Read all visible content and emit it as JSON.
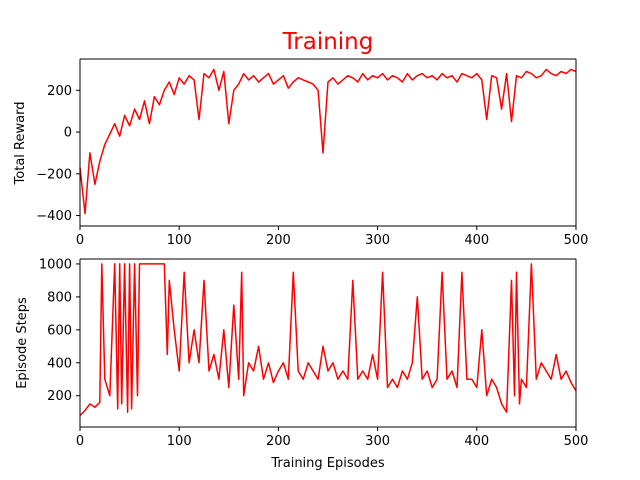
{
  "title": "Training",
  "title_color": "#ff0000",
  "line_color": "#ff0000",
  "chart_data": [
    {
      "type": "line",
      "title": "Training",
      "xlabel": "",
      "ylabel": "Total Reward",
      "xlim": [
        0,
        500
      ],
      "ylim": [
        -450,
        350
      ],
      "xticks": [
        0,
        100,
        200,
        300,
        400,
        500
      ],
      "yticks": [
        -400,
        -200,
        0,
        200
      ],
      "grid": false,
      "series": [
        {
          "x": [
            0,
            5,
            10,
            15,
            20,
            25,
            30,
            35,
            40,
            45,
            50,
            55,
            60,
            65,
            70,
            75,
            80,
            85,
            90,
            95,
            100,
            105,
            110,
            115,
            120,
            125,
            130,
            135,
            140,
            145,
            150,
            155,
            160,
            165,
            170,
            175,
            180,
            185,
            190,
            195,
            200,
            205,
            210,
            215,
            220,
            225,
            230,
            235,
            240,
            245,
            250,
            255,
            260,
            265,
            270,
            275,
            280,
            285,
            290,
            295,
            300,
            305,
            310,
            315,
            320,
            325,
            330,
            335,
            340,
            345,
            350,
            355,
            360,
            365,
            370,
            375,
            380,
            385,
            390,
            395,
            400,
            405,
            410,
            415,
            420,
            425,
            430,
            435,
            440,
            445,
            450,
            455,
            460,
            465,
            470,
            475,
            480,
            485,
            490,
            495,
            500
          ],
          "y": [
            -170,
            -390,
            -100,
            -250,
            -140,
            -60,
            -10,
            40,
            -20,
            80,
            30,
            110,
            60,
            150,
            40,
            170,
            130,
            200,
            240,
            180,
            260,
            230,
            270,
            250,
            60,
            280,
            260,
            300,
            200,
            290,
            40,
            200,
            230,
            280,
            250,
            270,
            240,
            260,
            280,
            230,
            250,
            270,
            210,
            240,
            260,
            250,
            240,
            230,
            200,
            -100,
            240,
            260,
            230,
            250,
            270,
            260,
            240,
            280,
            250,
            270,
            260,
            280,
            250,
            270,
            260,
            240,
            280,
            250,
            270,
            280,
            260,
            270,
            250,
            280,
            260,
            270,
            240,
            280,
            270,
            260,
            280,
            250,
            60,
            270,
            260,
            110,
            280,
            50,
            270,
            260,
            290,
            280,
            260,
            270,
            300,
            280,
            270,
            290,
            280,
            300,
            290
          ]
        }
      ]
    },
    {
      "type": "line",
      "xlabel": "Training Episodes",
      "ylabel": "Episode Steps",
      "xlim": [
        0,
        500
      ],
      "ylim": [
        10,
        1030
      ],
      "xticks": [
        0,
        100,
        200,
        300,
        400,
        500
      ],
      "yticks": [
        200,
        400,
        600,
        800,
        1000
      ],
      "grid": false,
      "series": [
        {
          "x": [
            0,
            5,
            10,
            15,
            20,
            22,
            25,
            30,
            35,
            38,
            40,
            42,
            45,
            48,
            50,
            52,
            55,
            58,
            60,
            65,
            70,
            75,
            80,
            85,
            88,
            90,
            95,
            100,
            105,
            110,
            115,
            120,
            125,
            130,
            135,
            140,
            145,
            150,
            155,
            160,
            163,
            165,
            170,
            175,
            180,
            185,
            190,
            195,
            200,
            205,
            210,
            215,
            220,
            225,
            230,
            235,
            240,
            245,
            250,
            255,
            260,
            265,
            270,
            275,
            280,
            285,
            290,
            295,
            300,
            305,
            310,
            315,
            320,
            325,
            330,
            335,
            340,
            345,
            350,
            355,
            360,
            365,
            370,
            375,
            380,
            385,
            390,
            395,
            400,
            405,
            410,
            415,
            420,
            425,
            430,
            435,
            438,
            440,
            443,
            445,
            450,
            455,
            460,
            465,
            470,
            475,
            480,
            485,
            490,
            495,
            500
          ],
          "y": [
            80,
            110,
            150,
            130,
            160,
            1000,
            300,
            200,
            1000,
            120,
            1000,
            150,
            1000,
            100,
            1000,
            120,
            1000,
            200,
            1000,
            1000,
            1000,
            1000,
            1000,
            1000,
            450,
            900,
            600,
            350,
            950,
            400,
            600,
            400,
            900,
            350,
            450,
            300,
            600,
            250,
            750,
            300,
            950,
            200,
            400,
            350,
            500,
            300,
            400,
            280,
            350,
            400,
            300,
            950,
            350,
            300,
            400,
            350,
            300,
            500,
            350,
            400,
            300,
            350,
            300,
            900,
            300,
            350,
            300,
            450,
            300,
            950,
            250,
            300,
            250,
            350,
            300,
            400,
            800,
            300,
            350,
            250,
            300,
            950,
            300,
            350,
            250,
            950,
            300,
            300,
            250,
            600,
            200,
            300,
            250,
            150,
            100,
            900,
            200,
            950,
            150,
            300,
            250,
            1000,
            300,
            400,
            350,
            300,
            450,
            300,
            350,
            280,
            230
          ]
        }
      ]
    }
  ]
}
